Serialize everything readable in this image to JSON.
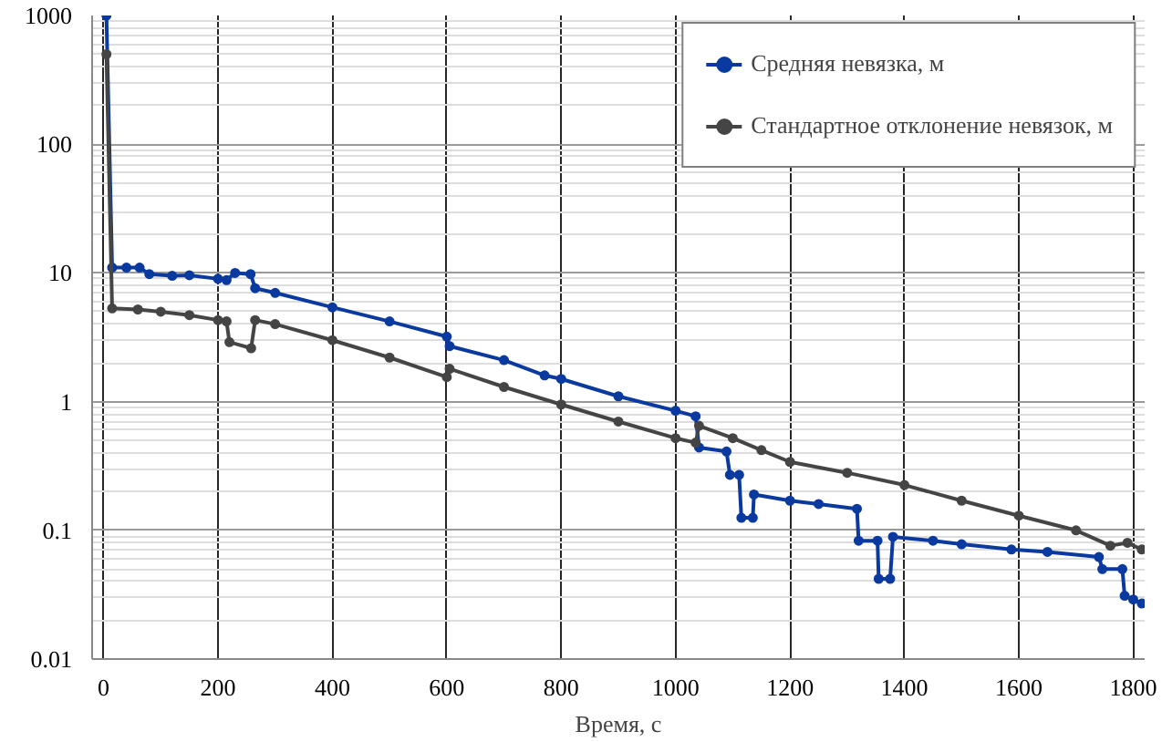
{
  "chart_data": {
    "type": "line",
    "xlabel": "Время, с",
    "log": "y",
    "xlim": [
      -20,
      1820
    ],
    "ylim": [
      0.01,
      1000
    ],
    "xticks": [
      0,
      200,
      400,
      600,
      800,
      1000,
      1200,
      1400,
      1600,
      1800
    ],
    "yticks": [
      0.01,
      0.1,
      1,
      10,
      100,
      1000
    ],
    "grid": true,
    "legend": "top right",
    "marker": "circle",
    "line_style": "solid",
    "series": [
      {
        "name": "Средняя невязка, м",
        "color": "#0a3aa0",
        "x": [
          5,
          15,
          40,
          63,
          80,
          120,
          150,
          200,
          215,
          230,
          257,
          265,
          300,
          400,
          500,
          600,
          605,
          700,
          771,
          800,
          900,
          1000,
          1035,
          1041,
          1089,
          1095,
          1111,
          1115,
          1135,
          1137,
          1200,
          1250,
          1317,
          1320,
          1353,
          1355,
          1375,
          1380,
          1450,
          1500,
          1587,
          1650,
          1740,
          1746,
          1781,
          1785,
          1800,
          1815
        ],
        "values": [
          1000,
          11,
          11,
          11,
          9.8,
          9.5,
          9.6,
          9.0,
          8.8,
          10,
          9.8,
          7.6,
          7.0,
          5.4,
          4.2,
          3.2,
          2.7,
          2.1,
          1.6,
          1.5,
          1.1,
          0.85,
          0.77,
          0.44,
          0.41,
          0.27,
          0.27,
          0.125,
          0.125,
          0.19,
          0.17,
          0.16,
          0.147,
          0.083,
          0.083,
          0.042,
          0.042,
          0.089,
          0.083,
          0.078,
          0.071,
          0.068,
          0.062,
          0.05,
          0.05,
          0.031,
          0.029,
          0.027
        ]
      },
      {
        "name": "Стандартное отклонение невязок, м",
        "color": "#454545",
        "x": [
          5,
          15,
          60,
          100,
          150,
          200,
          215,
          220,
          258,
          265,
          300,
          400,
          500,
          600,
          605,
          700,
          800,
          900,
          1000,
          1035,
          1041,
          1100,
          1150,
          1200,
          1300,
          1400,
          1500,
          1600,
          1700,
          1760,
          1790,
          1815
        ],
        "values": [
          500,
          5.3,
          5.2,
          5.0,
          4.7,
          4.3,
          4.2,
          2.9,
          2.6,
          4.3,
          4.0,
          3.0,
          2.2,
          1.55,
          1.8,
          1.3,
          0.95,
          0.7,
          0.52,
          0.48,
          0.65,
          0.52,
          0.42,
          0.34,
          0.28,
          0.225,
          0.17,
          0.13,
          0.1,
          0.076,
          0.08,
          0.071
        ]
      }
    ]
  }
}
